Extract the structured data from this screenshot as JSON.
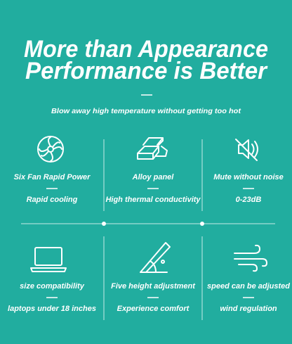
{
  "header": {
    "title_lines": [
      "More than Appearance",
      "Performance is Better"
    ],
    "subtitle": "Blow away high temperature without getting too hot"
  },
  "features": [
    {
      "label": "Six Fan Rapid Power",
      "detail": "Rapid cooling"
    },
    {
      "label": "Alloy panel",
      "detail": "High thermal conductivity"
    },
    {
      "label": "Mute without noise",
      "detail": "0-23dB"
    },
    {
      "label": "size compatibility",
      "detail": "laptops under 18 inches"
    },
    {
      "label": "Five height adjustment",
      "detail": "Experience comfort"
    },
    {
      "label": "speed can be adjusted",
      "detail": "wind regulation"
    }
  ]
}
